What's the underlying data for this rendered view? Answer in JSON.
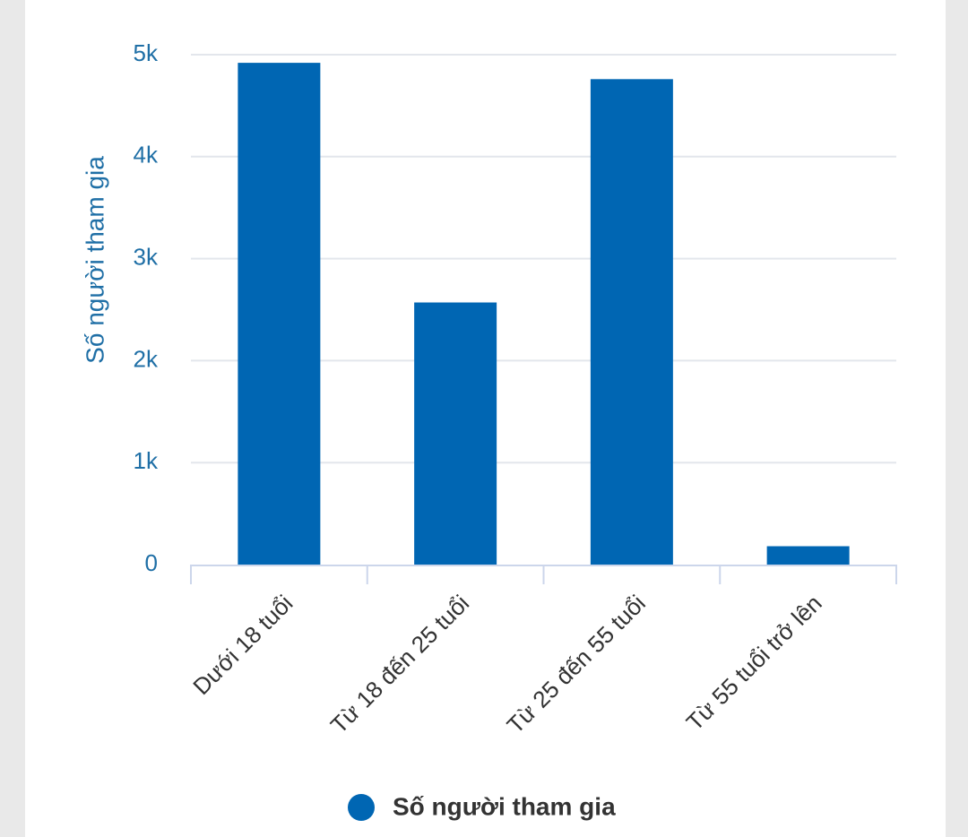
{
  "chart_data": {
    "type": "bar",
    "ylabel": "Số người tham gia",
    "categories": [
      "Dưới 18 tuổi",
      "Từ 18 đến 25 tuổi",
      "Từ 25 đến 55 tuổi",
      "Từ 55 tuổi trở lên"
    ],
    "series": [
      {
        "name": "Số người tham gia",
        "color": "#0066b3",
        "values": [
          4920,
          2570,
          4760,
          180
        ]
      }
    ],
    "ylim": [
      0,
      5000
    ],
    "yticks": [
      0,
      {
        "value": 1000,
        "label": "1k"
      },
      {
        "value": 2000,
        "label": "2k"
      },
      {
        "value": 3000,
        "label": "3k"
      },
      {
        "value": 4000,
        "label": "4k"
      },
      {
        "value": 5000,
        "label": "5k"
      }
    ],
    "grid": true,
    "legend": "bottom"
  }
}
